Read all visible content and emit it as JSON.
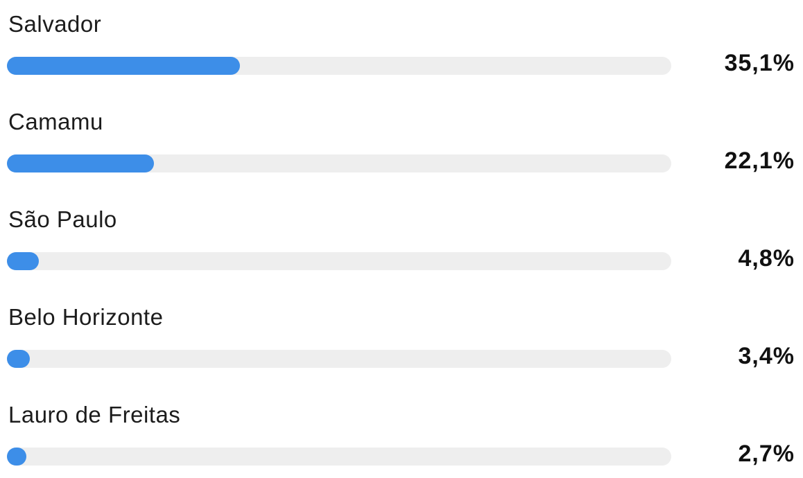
{
  "chart_data": {
    "type": "bar",
    "orientation": "horizontal",
    "categories": [
      "Salvador",
      "Camamu",
      "São Paulo",
      "Belo Horizonte",
      "Lauro de Freitas"
    ],
    "values": [
      35.1,
      22.1,
      4.8,
      3.4,
      2.7
    ],
    "value_labels": [
      "35,1%",
      "22,1%",
      "4,8%",
      "3,4%",
      "2,7%"
    ],
    "xlim": [
      0,
      100
    ],
    "grid": false,
    "legend": "none"
  },
  "colors": {
    "bar_fill": "#3d8ee8",
    "bar_track": "#eeeeee",
    "label_text": "#1c1c1c",
    "value_text": "#111111"
  }
}
